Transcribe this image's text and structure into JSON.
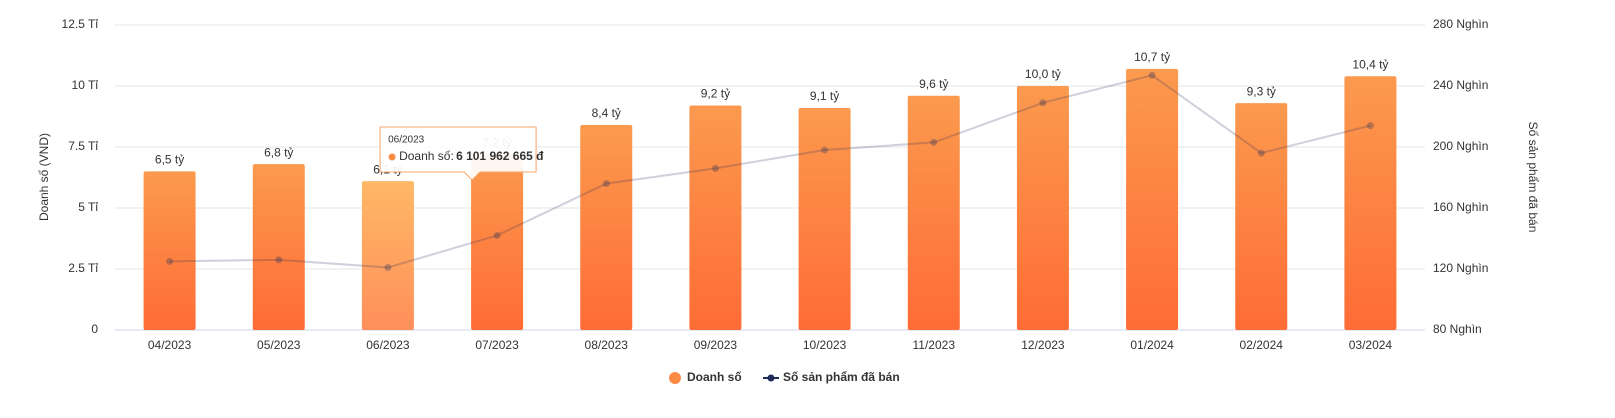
{
  "chart_data": {
    "type": "bar",
    "categories": [
      "04/2023",
      "05/2023",
      "06/2023",
      "07/2023",
      "08/2023",
      "09/2023",
      "10/2023",
      "11/2023",
      "12/2023",
      "01/2024",
      "02/2024",
      "03/2024"
    ],
    "series": [
      {
        "name": "Doanh số",
        "type": "bar",
        "color": "#fb8a45",
        "axis": "y",
        "values": [
          6.5,
          6.8,
          6.1,
          7.2,
          8.4,
          9.2,
          9.1,
          9.6,
          10.0,
          10.7,
          9.3,
          10.4
        ],
        "value_labels": [
          "6,5 tỷ",
          "6,8 tỷ",
          "6,1 tỷ",
          "7,2 tỷ",
          "8,4 tỷ",
          "9,2 tỷ",
          "9,1 tỷ",
          "9,6 tỷ",
          "10,0 tỷ",
          "10,7 tỷ",
          "9,3 tỷ",
          "10,4 tỷ"
        ]
      },
      {
        "name": "Số sản phẩm đã bán",
        "type": "line",
        "color": "#1e2a5a",
        "axis": "y2",
        "values": [
          125,
          126,
          121,
          142,
          176,
          186,
          198,
          203,
          229,
          247,
          196,
          214
        ]
      }
    ],
    "ylabel": "Doanh số (VND)",
    "y2label": "Số sản phẩm đã bán",
    "ylim": [
      0,
      12.5
    ],
    "yticks": [
      0,
      {
        "value": 2.5,
        "label": "2.5 Tỉ"
      },
      {
        "value": 5,
        "label": "5 Tỉ"
      },
      {
        "value": 7.5,
        "label": "7.5 Tỉ"
      },
      {
        "value": 10,
        "label": "10 Tỉ"
      },
      {
        "value": 12.5,
        "label": "12.5 Tỉ"
      }
    ],
    "y2lim": [
      80,
      280
    ],
    "y2ticks": [
      {
        "value": 80,
        "label": "80 Nghìn"
      },
      {
        "value": 120,
        "label": "120 Nghìn"
      },
      {
        "value": 160,
        "label": "160 Nghìn"
      },
      {
        "value": 200,
        "label": "200 Nghìn"
      },
      {
        "value": 240,
        "label": "240 Nghìn"
      },
      {
        "value": 280,
        "label": "280 Nghìn"
      }
    ],
    "grid": true,
    "legend": "bottom",
    "tooltip": {
      "title": "06/2023",
      "label": "Doanh số:",
      "value": "6 101 962 665 đ"
    }
  }
}
